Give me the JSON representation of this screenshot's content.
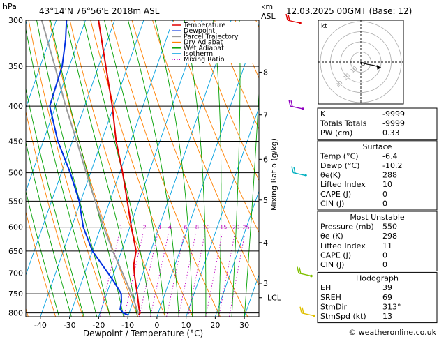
{
  "header": {
    "location": "43°14'N  76°56'E  2018m  ASL",
    "datetime": "12.03.2025  00GMT  (Base: 12)",
    "left_unit": "hPa",
    "right_unit_top": "km",
    "right_unit_bottom": "ASL"
  },
  "chart_data": {
    "type": "skew-t log-p",
    "title": "43°14'N  76°56'E  2018m  ASL",
    "xlabel": "Dewpoint / Temperature (°C)",
    "ylabel_left": "hPa",
    "ylabel_right": "Mixing Ratio (g/kg)",
    "xlim": [
      -45,
      35
    ],
    "ylim": [
      810,
      300
    ],
    "skew_c_per_log10p": 82.2,
    "pressure_ticks": [
      300,
      350,
      400,
      450,
      500,
      550,
      600,
      650,
      700,
      750,
      800
    ],
    "temperature_ticks": [
      -40,
      -30,
      -20,
      -10,
      0,
      10,
      20,
      30
    ],
    "km_ticks": [
      {
        "label": "8",
        "p": 357
      },
      {
        "label": "7",
        "p": 412
      },
      {
        "label": "6",
        "p": 478
      },
      {
        "label": "5",
        "p": 548
      },
      {
        "label": "4",
        "p": 632
      },
      {
        "label": "3",
        "p": 724
      }
    ],
    "lcl": {
      "label": "LCL",
      "p": 760
    },
    "mixing_ratio_labels": [
      "1",
      "2",
      "3",
      "4",
      "6",
      "8",
      "10",
      "15",
      "20",
      "25"
    ],
    "mixing_ratios": [
      1,
      2,
      3,
      4,
      6,
      8,
      10,
      15,
      20,
      25
    ],
    "mixing_ratio_label_p": 600,
    "legend": [
      {
        "name": "Temperature",
        "color": "#e00000"
      },
      {
        "name": "Dewpoint",
        "color": "#0030e0"
      },
      {
        "name": "Parcel Trajectory",
        "color": "#9a9a9a"
      },
      {
        "name": "Dry Adiabat",
        "color": "#ff8000"
      },
      {
        "name": "Wet Adiabat",
        "color": "#00a000"
      },
      {
        "name": "Isotherm",
        "color": "#00a0e0"
      },
      {
        "name": "Mixing Ratio",
        "color": "#c000c0"
      }
    ],
    "temperature_profile": [
      {
        "p": 805,
        "t": -6.4
      },
      {
        "p": 800,
        "t": -6.2
      },
      {
        "p": 790,
        "t": -7.0
      },
      {
        "p": 750,
        "t": -9.5
      },
      {
        "p": 720,
        "t": -11.6
      },
      {
        "p": 700,
        "t": -13.0
      },
      {
        "p": 680,
        "t": -14.2
      },
      {
        "p": 650,
        "t": -15.0
      },
      {
        "p": 600,
        "t": -19.5
      },
      {
        "p": 550,
        "t": -24.0
      },
      {
        "p": 500,
        "t": -29.0
      },
      {
        "p": 450,
        "t": -35.0
      },
      {
        "p": 400,
        "t": -40.5
      },
      {
        "p": 350,
        "t": -47.5
      },
      {
        "p": 300,
        "t": -55.5
      }
    ],
    "dewpoint_profile": [
      {
        "p": 805,
        "t": -10.2
      },
      {
        "p": 800,
        "t": -12.0
      },
      {
        "p": 790,
        "t": -13.5
      },
      {
        "p": 770,
        "t": -14.0
      },
      {
        "p": 750,
        "t": -15.0
      },
      {
        "p": 720,
        "t": -19.0
      },
      {
        "p": 700,
        "t": -22.0
      },
      {
        "p": 650,
        "t": -30.0
      },
      {
        "p": 600,
        "t": -36.0
      },
      {
        "p": 550,
        "t": -40.5
      },
      {
        "p": 500,
        "t": -47.0
      },
      {
        "p": 450,
        "t": -55.0
      },
      {
        "p": 400,
        "t": -62.0
      },
      {
        "p": 350,
        "t": -62.5
      },
      {
        "p": 320,
        "t": -64.5
      },
      {
        "p": 300,
        "t": -66.5
      }
    ],
    "parcel_profile": [
      {
        "p": 805,
        "t": -6.4
      },
      {
        "p": 760,
        "t": -10.5
      },
      {
        "p": 700,
        "t": -17.0
      },
      {
        "p": 650,
        "t": -23.0
      },
      {
        "p": 600,
        "t": -29.0
      },
      {
        "p": 550,
        "t": -35.0
      },
      {
        "p": 500,
        "t": -41.5
      },
      {
        "p": 450,
        "t": -48.5
      },
      {
        "p": 400,
        "t": -56.5
      },
      {
        "p": 350,
        "t": -65.0
      },
      {
        "p": 300,
        "t": -75.0
      }
    ],
    "wind_barbs": [
      {
        "p": 300,
        "color": "#e00000"
      },
      {
        "p": 400,
        "color": "#9000c0"
      },
      {
        "p": 500,
        "color": "#00b0c0"
      },
      {
        "p": 700,
        "color": "#80c000"
      },
      {
        "p": 800,
        "color": "#e0c000"
      }
    ]
  },
  "hodograph": {
    "label": "kt",
    "rings_kt": [
      10,
      20,
      30,
      40
    ],
    "ring_labels": [
      "10",
      "20",
      "30"
    ],
    "hodo_points_kt": [
      [
        0,
        0
      ],
      [
        1,
        -1
      ],
      [
        3,
        -2
      ],
      [
        6,
        -3
      ],
      [
        9,
        -5
      ]
    ],
    "storm_motion_kt": [
      2,
      -2
    ]
  },
  "indices": {
    "rows": [
      {
        "label": "K",
        "value": "-9999"
      },
      {
        "label": "Totals Totals",
        "value": "-9999"
      },
      {
        "label": "PW (cm)",
        "value": "0.33"
      }
    ]
  },
  "surface": {
    "title": "Surface",
    "rows": [
      {
        "label": "Temp (°C)",
        "value": "-6.4"
      },
      {
        "label": "Dewp (°C)",
        "value": "-10.2"
      },
      {
        "label": "θe(K)",
        "value": "288"
      },
      {
        "label": "Lifted Index",
        "value": "10"
      },
      {
        "label": "CAPE (J)",
        "value": "0"
      },
      {
        "label": "CIN (J)",
        "value": "0"
      }
    ]
  },
  "most_unstable": {
    "title": "Most Unstable",
    "rows": [
      {
        "label": "Pressure (mb)",
        "value": "550"
      },
      {
        "label": "θe (K)",
        "value": "298"
      },
      {
        "label": "Lifted Index",
        "value": "11"
      },
      {
        "label": "CAPE (J)",
        "value": "0"
      },
      {
        "label": "CIN (J)",
        "value": "0"
      }
    ]
  },
  "hodograph_table": {
    "title": "Hodograph",
    "rows": [
      {
        "label": "EH",
        "value": "39"
      },
      {
        "label": "SREH",
        "value": "69"
      },
      {
        "label": "StmDir",
        "value": "313°"
      },
      {
        "label": "StmSpd (kt)",
        "value": "13"
      }
    ]
  },
  "footer": {
    "credit": "© weatheronline.co.uk"
  }
}
